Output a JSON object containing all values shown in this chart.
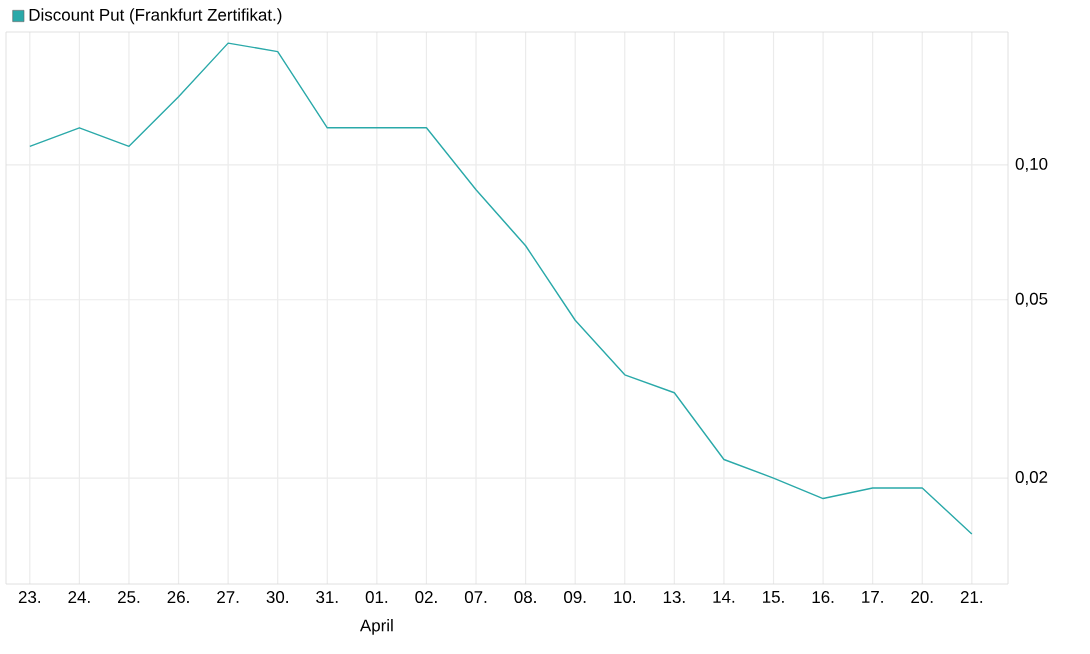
{
  "chart_data": {
    "type": "line",
    "categories": [
      "23.",
      "24.",
      "25.",
      "26.",
      "27.",
      "30.",
      "31.",
      "01.",
      "02.",
      "07.",
      "08.",
      "09.",
      "10.",
      "13.",
      "14.",
      "15.",
      "16.",
      "17.",
      "20.",
      "21."
    ],
    "series": [
      {
        "name": "Discount Put (Frankfurt Zertifikat.)",
        "color": "#2aa9a9",
        "values": [
          0.11,
          0.121,
          0.11,
          0.142,
          0.187,
          0.179,
          0.121,
          0.121,
          0.121,
          0.088,
          0.066,
          0.045,
          0.034,
          0.031,
          0.022,
          0.02,
          0.018,
          0.019,
          0.019,
          0.015
        ]
      }
    ],
    "ylim": [
      0.0116,
      0.198
    ],
    "yticks": [
      {
        "value": 0.02,
        "label": "0,02"
      },
      {
        "value": 0.05,
        "label": "0,05"
      },
      {
        "value": 0.1,
        "label": "0,10"
      }
    ],
    "log": "y",
    "grid": true,
    "legend": "top left",
    "marker": "none",
    "line_style": "solid",
    "annotations": [
      "April"
    ]
  }
}
